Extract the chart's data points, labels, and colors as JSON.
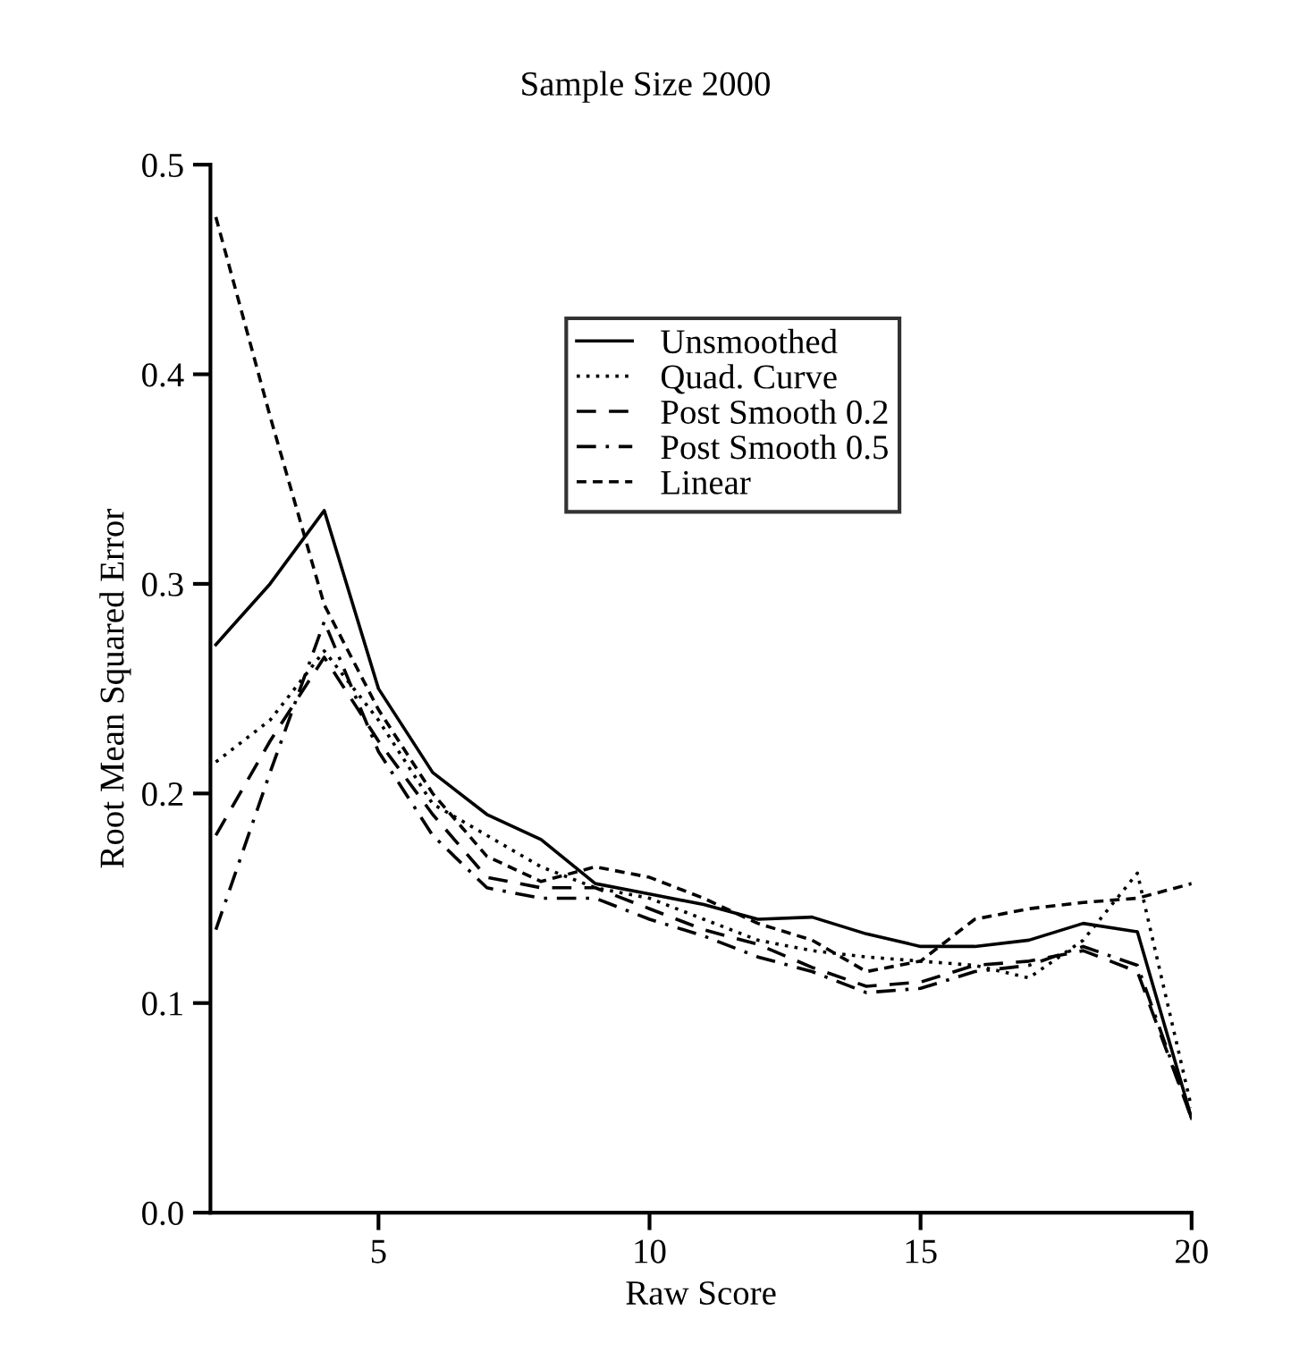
{
  "chart_data": {
    "type": "line",
    "title": "Sample Size 2000",
    "xlabel": "Raw Score",
    "ylabel": "Root Mean Squared Error",
    "x": [
      2,
      3,
      4,
      5,
      6,
      7,
      8,
      9,
      10,
      11,
      12,
      13,
      14,
      15,
      16,
      17,
      18,
      19,
      20
    ],
    "series": [
      {
        "name": "Unsmoothed",
        "color": "#000000",
        "line_style": "solid",
        "values": [
          0.271,
          0.3,
          0.335,
          0.25,
          0.21,
          0.19,
          0.178,
          0.157,
          0.152,
          0.147,
          0.14,
          0.141,
          0.133,
          0.127,
          0.127,
          0.13,
          0.138,
          0.134,
          0.045
        ]
      },
      {
        "name": "Quad. Curve",
        "color": "#000000",
        "line_style": "dotted",
        "values": [
          0.215,
          0.235,
          0.268,
          0.235,
          0.195,
          0.18,
          0.165,
          0.155,
          0.15,
          0.14,
          0.13,
          0.125,
          0.122,
          0.12,
          0.118,
          0.112,
          0.13,
          0.162,
          0.05
        ]
      },
      {
        "name": "Post Smooth 0.2",
        "color": "#000000",
        "line_style": "dashed",
        "values": [
          0.18,
          0.225,
          0.265,
          0.225,
          0.19,
          0.16,
          0.155,
          0.155,
          0.145,
          0.135,
          0.128,
          0.117,
          0.108,
          0.11,
          0.118,
          0.12,
          0.125,
          0.115,
          0.045
        ]
      },
      {
        "name": "Post Smooth 0.5",
        "color": "#000000",
        "line_style": "dashdot",
        "values": [
          0.135,
          0.21,
          0.282,
          0.22,
          0.18,
          0.155,
          0.15,
          0.15,
          0.14,
          0.132,
          0.122,
          0.115,
          0.105,
          0.107,
          0.115,
          0.118,
          0.127,
          0.118,
          0.045
        ]
      },
      {
        "name": "Linear",
        "color": "#000000",
        "line_style": "shortdash",
        "values": [
          0.475,
          0.38,
          0.29,
          0.24,
          0.2,
          0.17,
          0.158,
          0.165,
          0.16,
          0.15,
          0.138,
          0.13,
          0.115,
          0.12,
          0.14,
          0.145,
          0.148,
          0.15,
          0.157
        ]
      }
    ],
    "xlim": [
      1.9,
      20
    ],
    "ylim": [
      0,
      0.5
    ],
    "xticks": [
      5,
      10,
      15,
      20
    ],
    "yticks": [
      {
        "value": 0,
        "label": "0.0"
      },
      0.1,
      0.2,
      0.3,
      0.4,
      0.5
    ],
    "grid": false,
    "legend": "top right",
    "marker": "none"
  }
}
